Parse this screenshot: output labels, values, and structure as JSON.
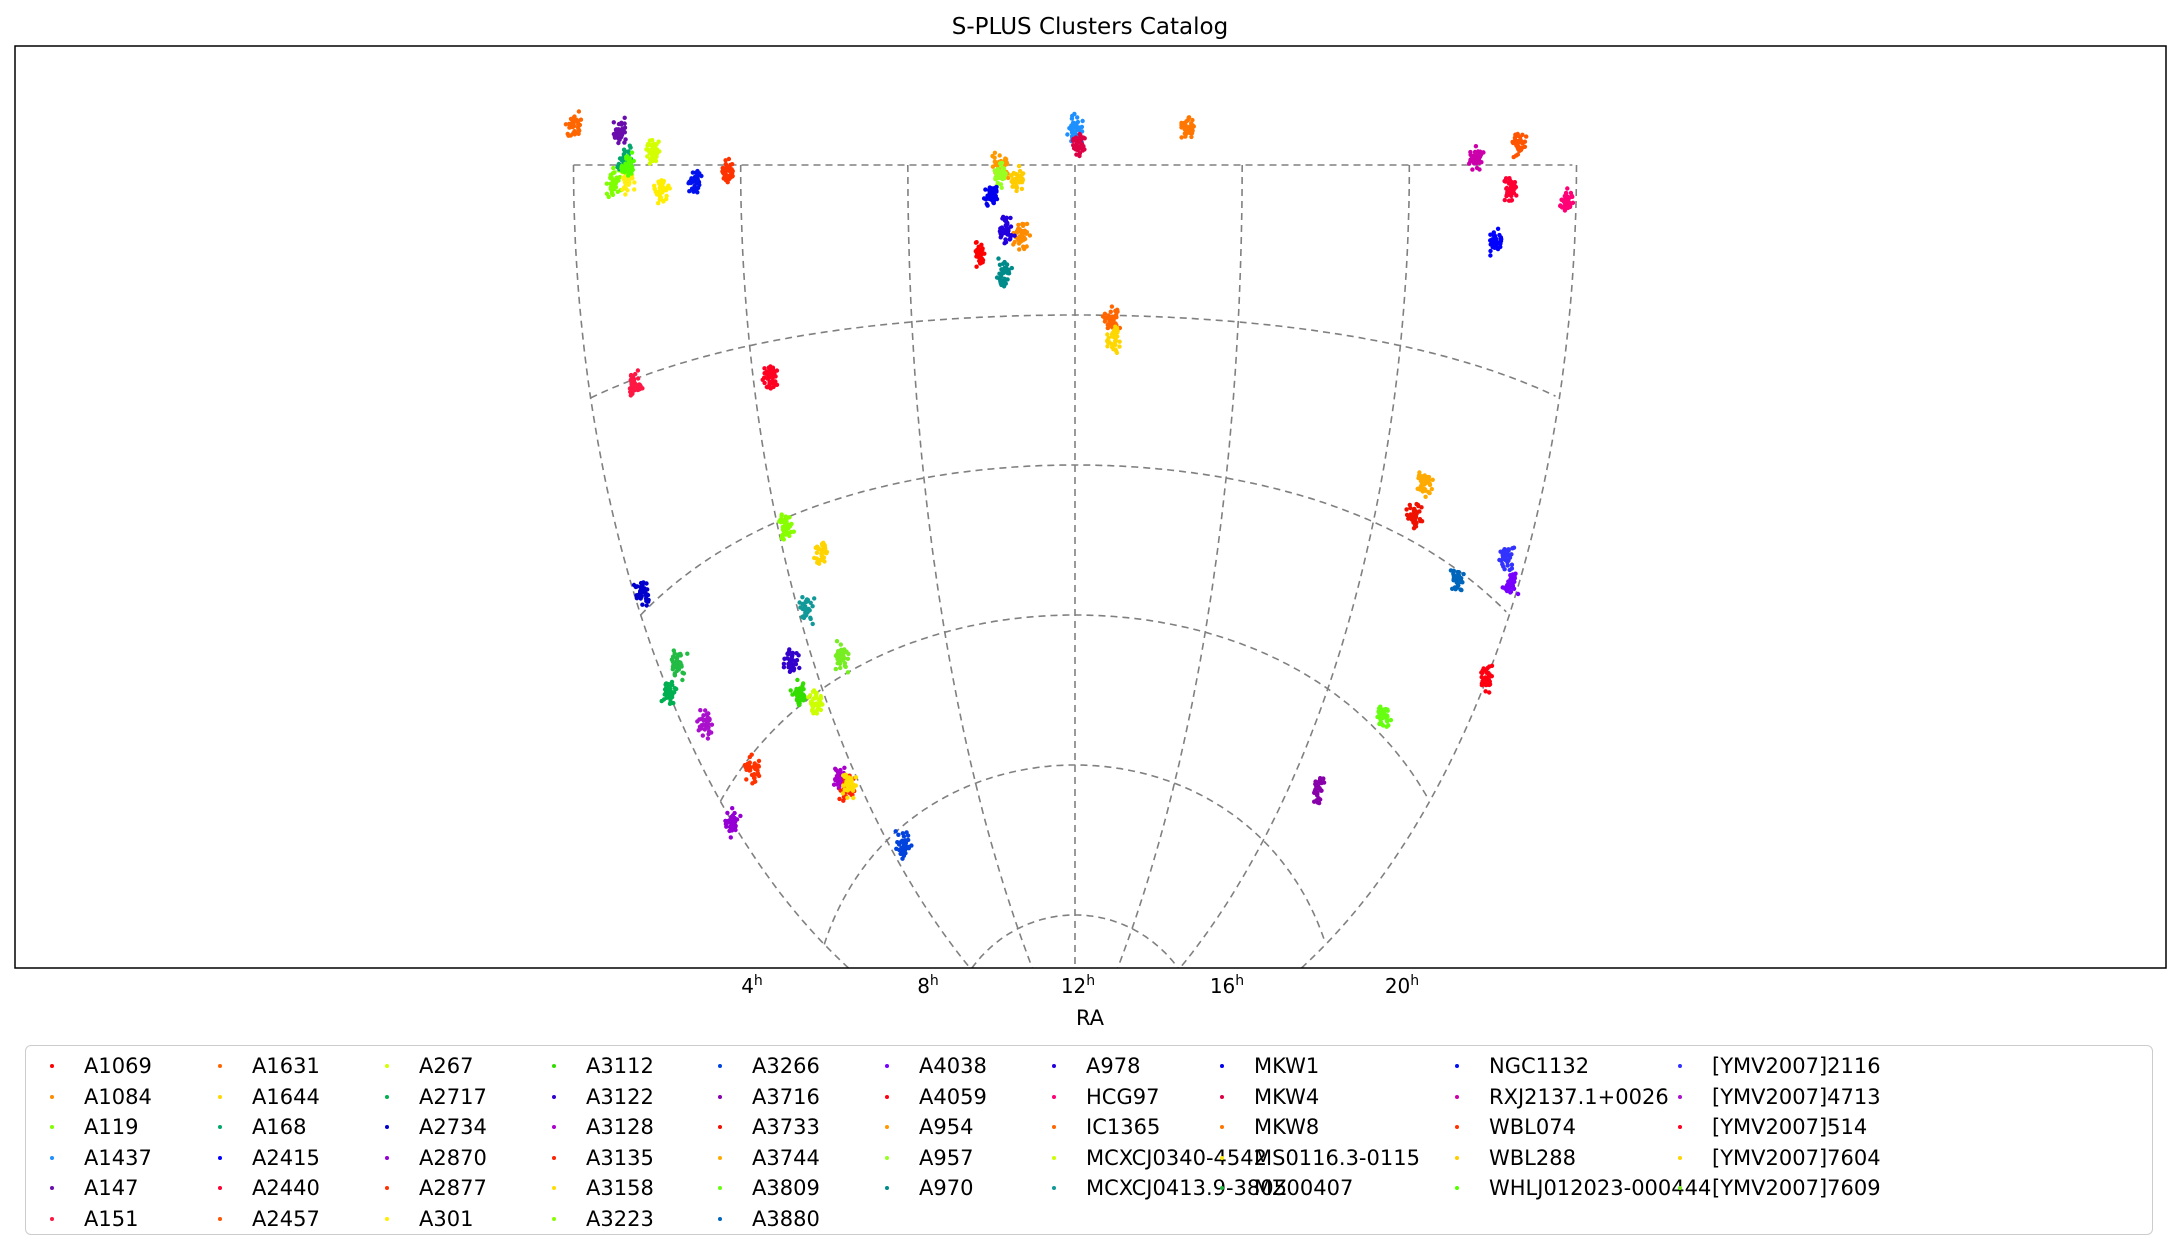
{
  "chart_data": {
    "type": "scatter",
    "title": "S-PLUS Clusters Catalog",
    "xlabel": "RA",
    "ylabel": "",
    "projection": "aitoff-like (southern hemisphere)",
    "x_ticks": [
      "4",
      "8",
      "12",
      "16",
      "20"
    ],
    "x_tick_sup": "h",
    "grid": true,
    "legend_placement": "below",
    "legend_columns": 10,
    "series": [
      {
        "name": "A1069",
        "color": "#ff0000",
        "x": 9.7,
        "y": -8.7
      },
      {
        "name": "A1084",
        "color": "#ff8c00",
        "x": 10.7,
        "y": -7.1
      },
      {
        "name": "A119",
        "color": "#7fff00",
        "x": 0.95,
        "y": -1.2
      },
      {
        "name": "A1437",
        "color": "#1e90ff",
        "x": 12.0,
        "y": 3.4
      },
      {
        "name": "A147",
        "color": "#6a0dad",
        "x": 1.1,
        "y": 2.2
      },
      {
        "name": "A151",
        "color": "#ff1744",
        "x": 1.1,
        "y": -15.4
      },
      {
        "name": "A1631",
        "color": "#ff6600",
        "x": 12.9,
        "y": -15.4
      },
      {
        "name": "A1644",
        "color": "#ffd700",
        "x": 12.95,
        "y": -17.4
      },
      {
        "name": "A168",
        "color": "#00a86b",
        "x": 1.25,
        "y": 0.3
      },
      {
        "name": "A2415",
        "color": "#0000ff",
        "x": 22.1,
        "y": -5.5
      },
      {
        "name": "A2440",
        "color": "#ff0033",
        "x": 22.4,
        "y": -1.6
      },
      {
        "name": "A2457",
        "color": "#ff5500",
        "x": 22.6,
        "y": 1.5
      },
      {
        "name": "A267",
        "color": "#d4ff00",
        "x": 1.9,
        "y": 1.0
      },
      {
        "name": "A2717",
        "color": "#00b050",
        "x": 0.05,
        "y": -35.9
      },
      {
        "name": "A2734",
        "color": "#0000cd",
        "x": 0.2,
        "y": -28.8
      },
      {
        "name": "A2870",
        "color": "#9400d3",
        "x": 0.0,
        "y": -46.9
      },
      {
        "name": "A2877",
        "color": "#ff3300",
        "x": 1.2,
        "y": -45.9
      },
      {
        "name": "A301",
        "color": "#ffee00",
        "x": 2.1,
        "y": -2.0
      },
      {
        "name": "A3112",
        "color": "#33dd00",
        "x": 3.3,
        "y": -44.2
      },
      {
        "name": "A3122",
        "color": "#3300cc",
        "x": 3.4,
        "y": -41.3
      },
      {
        "name": "A3128",
        "color": "#aa00cc",
        "x": 3.5,
        "y": -52.5
      },
      {
        "name": "A3135",
        "color": "#ff2200",
        "x": 3.6,
        "y": -53.7
      },
      {
        "name": "A3158",
        "color": "#ffdd00",
        "x": 3.7,
        "y": -53.6
      },
      {
        "name": "A3223",
        "color": "#88ff00",
        "x": 4.2,
        "y": -30.8
      },
      {
        "name": "A3266",
        "color": "#0044dd",
        "x": 4.5,
        "y": -61.4
      },
      {
        "name": "A3716",
        "color": "#8800aa",
        "x": 20.9,
        "y": -52.7
      },
      {
        "name": "A3733",
        "color": "#ee1100",
        "x": 21.0,
        "y": -28.0
      },
      {
        "name": "A3744",
        "color": "#ffaa00",
        "x": 21.1,
        "y": -25.5
      },
      {
        "name": "A3809",
        "color": "#66ff11",
        "x": 21.8,
        "y": -43.9
      },
      {
        "name": "A3880",
        "color": "#0066bb",
        "x": 22.5,
        "y": -30.6
      },
      {
        "name": "A4038",
        "color": "#7700ff",
        "x": 23.8,
        "y": -28.1
      },
      {
        "name": "A4059",
        "color": "#ff0011",
        "x": 23.95,
        "y": -34.8
      },
      {
        "name": "A954",
        "color": "#ff9900",
        "x": 10.2,
        "y": -0.1
      },
      {
        "name": "A957",
        "color": "#99ff22",
        "x": 10.2,
        "y": -0.9
      },
      {
        "name": "A970",
        "color": "#008b8b",
        "x": 10.3,
        "y": -10.7
      },
      {
        "name": "A978",
        "color": "#2200dd",
        "x": 10.35,
        "y": -6.5
      },
      {
        "name": "HCG97",
        "color": "#ff0077",
        "x": 23.8,
        "y": -2.3
      },
      {
        "name": "IC1365",
        "color": "#ff6600",
        "x": 0.0,
        "y": 2.6
      },
      {
        "name": "MCXCJ0340-4542",
        "color": "#ccff00",
        "x": 3.67,
        "y": -45.7
      },
      {
        "name": "MCXCJ0413.9-3805",
        "color": "#119999",
        "x": 4.23,
        "y": -38.1
      },
      {
        "name": "MKW1",
        "color": "#0000ee",
        "x": 10.0,
        "y": -2.9
      },
      {
        "name": "MKW4",
        "color": "#dd0044",
        "x": 12.1,
        "y": 1.9
      },
      {
        "name": "MKW8",
        "color": "#ff7700",
        "x": 14.7,
        "y": 3.5
      },
      {
        "name": "MS0116.3-0115",
        "color": "#ffee11",
        "x": 1.3,
        "y": -1.0
      },
      {
        "name": "MZ00407",
        "color": "#22bb44",
        "x": 0.5,
        "y": -35.0
      },
      {
        "name": "NGC1132",
        "color": "#0011ee",
        "x": 2.9,
        "y": -1.3
      },
      {
        "name": "RXJ2137.1+0026",
        "color": "#cc00aa",
        "x": 21.6,
        "y": 0.4
      },
      {
        "name": "WBL074",
        "color": "#ff3300",
        "x": 3.7,
        "y": -0.6
      },
      {
        "name": "WBL288",
        "color": "#ffcc00",
        "x": 10.6,
        "y": -1.5
      },
      {
        "name": "WHLJ012023-000444",
        "color": "#55ff00",
        "x": 1.3,
        "y": -0.1
      },
      {
        "name": "[YMV2007]2116",
        "color": "#3333ff",
        "x": 23.5,
        "y": -27.0
      },
      {
        "name": "[YMV2007]4713",
        "color": "#aa11cc",
        "x": 0.6,
        "y": -40.0
      },
      {
        "name": "[YMV2007]514",
        "color": "#ff0022",
        "x": 4.4,
        "y": -18.0
      },
      {
        "name": "[YMV2007]7604",
        "color": "#ffd400",
        "x": 5.0,
        "y": -34.0
      },
      {
        "name": "[YMV2007]7609",
        "color": "#77ee22",
        "x": 4.8,
        "y": -43.5
      }
    ]
  }
}
